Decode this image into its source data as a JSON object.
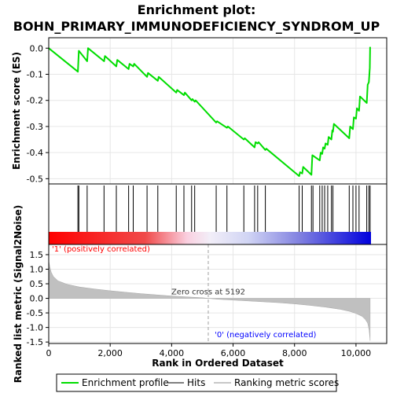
{
  "chart_data": [
    {
      "type": "line",
      "panel": "enrichment",
      "title_lines": [
        "Enrichment plot:",
        "BOHN_PRIMARY_IMMUNODEFICIENCY_SYNDROM_UP"
      ],
      "ylabel": "Enrichment score (ES)",
      "ylim": [
        -0.52,
        0.04
      ],
      "xlim": [
        0,
        11000
      ],
      "yticks": [
        0.0,
        -0.1,
        -0.2,
        -0.3,
        -0.4,
        -0.5
      ],
      "ytick_labels": [
        "0.0",
        "-0.1",
        "-0.2",
        "-0.3",
        "-0.4",
        "-0.5"
      ],
      "grid": true,
      "series_color": "#00dd00",
      "series": [
        {
          "name": "Enrichment profile",
          "x": [
            0,
            950,
            980,
            1250,
            1280,
            1800,
            1830,
            2200,
            2230,
            2600,
            2630,
            2750,
            2780,
            3200,
            3230,
            3550,
            3580,
            4150,
            4180,
            4400,
            4430,
            4650,
            4680,
            4750,
            4780,
            5450,
            5480,
            5800,
            5830,
            6350,
            6380,
            6700,
            6730,
            6800,
            6830,
            7050,
            7080,
            8150,
            8180,
            8250,
            8280,
            8550,
            8580,
            8820,
            8850,
            8900,
            8930,
            8980,
            9010,
            9080,
            9110,
            9200,
            9230,
            9250,
            9280,
            9780,
            9810,
            9900,
            9930,
            10000,
            10030,
            10100,
            10130,
            10350,
            10380,
            10420,
            10450,
            10460
          ],
          "y": [
            0.0,
            -0.09,
            -0.01,
            -0.05,
            0.0,
            -0.05,
            -0.03,
            -0.07,
            -0.045,
            -0.08,
            -0.06,
            -0.07,
            -0.06,
            -0.11,
            -0.095,
            -0.125,
            -0.11,
            -0.17,
            -0.16,
            -0.18,
            -0.17,
            -0.2,
            -0.195,
            -0.205,
            -0.2,
            -0.285,
            -0.28,
            -0.305,
            -0.3,
            -0.35,
            -0.345,
            -0.38,
            -0.36,
            -0.365,
            -0.36,
            -0.39,
            -0.385,
            -0.49,
            -0.475,
            -0.48,
            -0.455,
            -0.485,
            -0.41,
            -0.43,
            -0.4,
            -0.405,
            -0.38,
            -0.385,
            -0.365,
            -0.37,
            -0.34,
            -0.35,
            -0.315,
            -0.32,
            -0.29,
            -0.345,
            -0.3,
            -0.31,
            -0.265,
            -0.27,
            -0.23,
            -0.24,
            -0.185,
            -0.21,
            -0.14,
            -0.13,
            -0.075,
            0.005
          ]
        }
      ]
    },
    {
      "type": "scatter",
      "panel": "hits",
      "series": [
        {
          "name": "Hits",
          "x": [
            950,
            980,
            1250,
            1800,
            2200,
            2600,
            2750,
            3200,
            3550,
            4150,
            4400,
            4650,
            4750,
            5450,
            5800,
            6350,
            6700,
            6800,
            7050,
            8150,
            8250,
            8550,
            8600,
            8820,
            8900,
            8980,
            9080,
            9200,
            9250,
            9780,
            9900,
            10000,
            10100,
            10350,
            10420,
            10460
          ]
        }
      ]
    },
    {
      "type": "area",
      "panel": "ranked-list",
      "ylabel": "Ranked list metric (Signal2Noise)",
      "xlabel": "Rank in Ordered Dataset",
      "ylim": [
        -1.55,
        1.85
      ],
      "xlim": [
        0,
        11000
      ],
      "yticks": [
        1.5,
        1.0,
        0.5,
        0.0,
        -0.5,
        -1.0,
        -1.5
      ],
      "ytick_labels": [
        "1.5",
        "1.0",
        "0.5",
        "0.0",
        "-0.5",
        "-1.0",
        "-1.5"
      ],
      "xticks": [
        0,
        2000,
        4000,
        6000,
        8000,
        10000
      ],
      "xtick_labels": [
        "0",
        "2,000",
        "4,000",
        "6,000",
        "8,000",
        "10,000"
      ],
      "grid": true,
      "series": [
        {
          "name": "Ranking metric scores",
          "x": [
            0,
            30,
            80,
            150,
            300,
            600,
            1000,
            1500,
            2000,
            2500,
            3000,
            3500,
            4000,
            4500,
            5000,
            5192,
            5500,
            6000,
            6500,
            7000,
            7500,
            8000,
            8500,
            9000,
            9500,
            9800,
            10000,
            10200,
            10300,
            10380,
            10430,
            10460
          ],
          "y": [
            1.3,
            1.1,
            0.9,
            0.75,
            0.6,
            0.48,
            0.39,
            0.32,
            0.26,
            0.21,
            0.16,
            0.12,
            0.08,
            0.05,
            0.02,
            0.0,
            -0.03,
            -0.06,
            -0.09,
            -0.12,
            -0.15,
            -0.19,
            -0.24,
            -0.3,
            -0.38,
            -0.45,
            -0.52,
            -0.62,
            -0.72,
            -0.85,
            -1.1,
            -1.45
          ]
        }
      ],
      "zero_cross": 5192,
      "zero_cross_label": "Zero cross at 5192",
      "pos_label": "'1' (positively correlated)",
      "neg_label": "'0' (negatively correlated)",
      "pos_color": "#ff0000",
      "neg_color": "#0000ff"
    }
  ],
  "legend": {
    "items": [
      {
        "label": "Enrichment profile",
        "color": "#00dd00"
      },
      {
        "label": "Hits",
        "color": "#000000"
      },
      {
        "label": "Ranking metric scores",
        "color": "#c8c8c8"
      }
    ]
  },
  "colors": {
    "heat_positive": "#ff0000",
    "heat_negative": "#0000ff",
    "metric_fill": "#c0c0c0"
  }
}
